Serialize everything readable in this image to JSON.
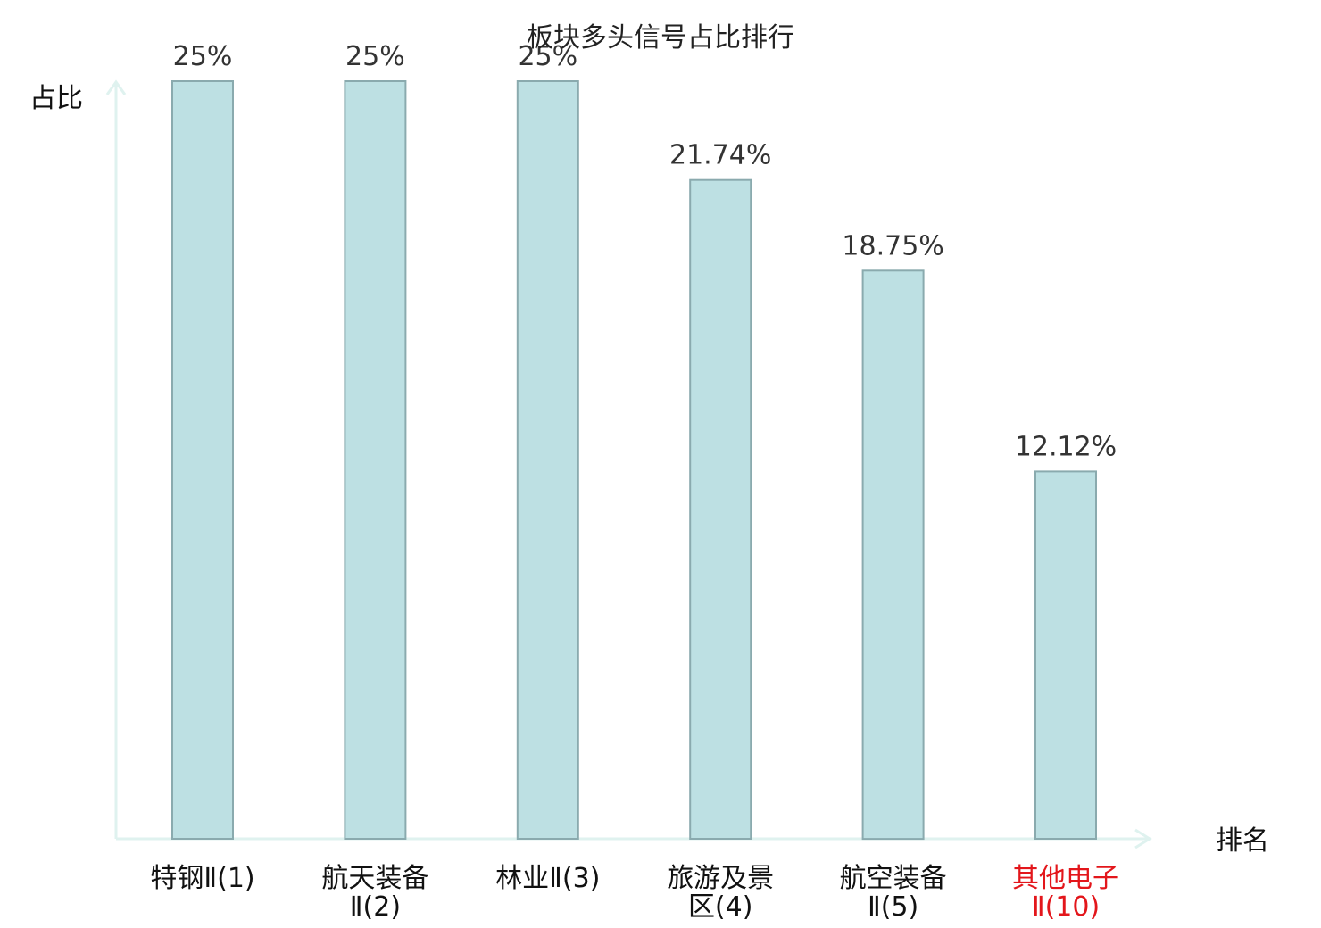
{
  "chart_data": {
    "type": "bar",
    "title": "板块多头信号占比排行",
    "xlabel": "排名",
    "ylabel": "占比",
    "categories": [
      [
        "特钢Ⅱ(1)"
      ],
      [
        "航天装备",
        "Ⅱ(2)"
      ],
      [
        "林业Ⅱ(3)"
      ],
      [
        "旅游及景",
        "区(4)"
      ],
      [
        "航空装备",
        "Ⅱ(5)"
      ],
      [
        "其他电子",
        "Ⅱ(10)"
      ]
    ],
    "values": [
      25,
      25,
      25,
      21.74,
      18.75,
      12.12
    ],
    "value_labels": [
      "25%",
      "25%",
      "25%",
      "21.74%",
      "18.75%",
      "12.12%"
    ],
    "highlight_index": 5,
    "ylim": [
      0,
      25
    ],
    "grid": false,
    "legend": "none",
    "colors": {
      "bar_fill": "#bde0e3",
      "bar_stroke": "#8aaaae",
      "axis": "#dff2ef",
      "tick_text": "#111111",
      "highlight_text": "#e3161b"
    }
  }
}
